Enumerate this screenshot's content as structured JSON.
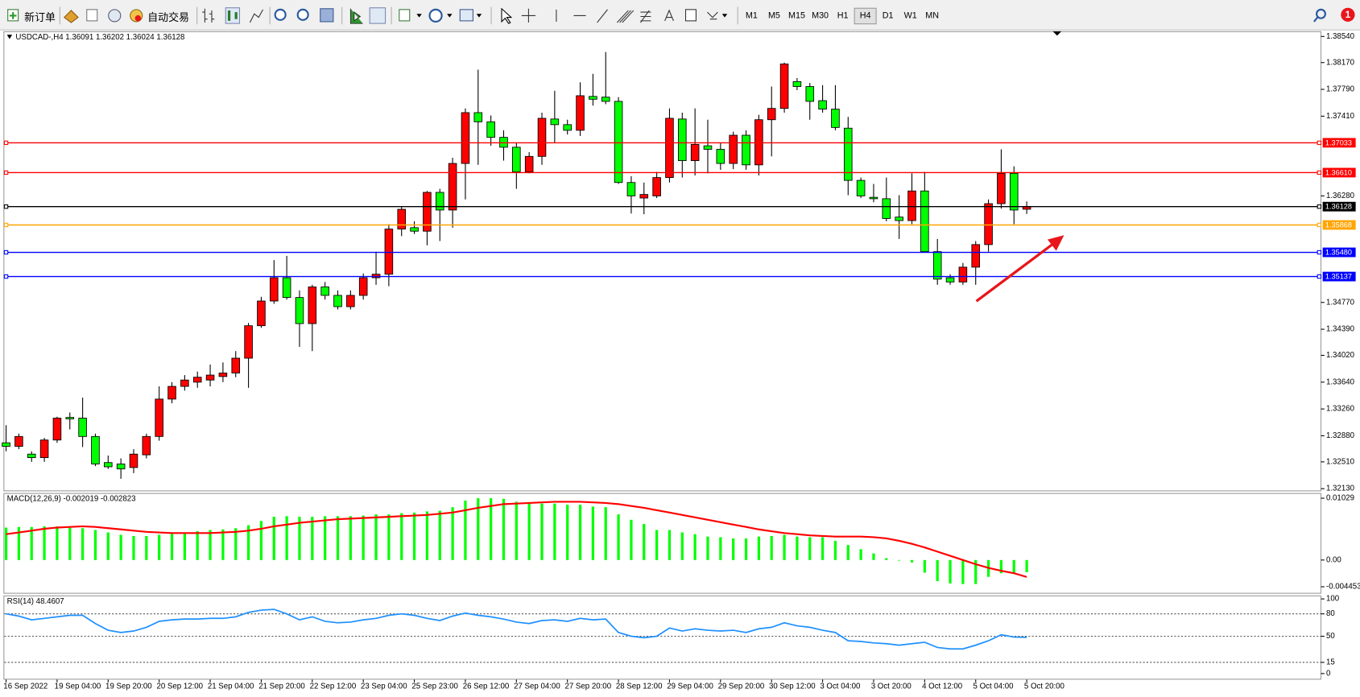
{
  "toolbar": {
    "new_order": "新订单",
    "auto_trading": "自动交易",
    "timeframes": [
      "M1",
      "M5",
      "M15",
      "M30",
      "H1",
      "H4",
      "D1",
      "W1",
      "MN"
    ],
    "notifications": "1"
  },
  "chart_data": [
    {
      "type": "candlestick",
      "title": "USDCAD-,H4  1.36091 1.36202 1.36024 1.36128",
      "categories": [
        "16 Sep 2022",
        null,
        null,
        null,
        "19 Sep 04:00",
        null,
        null,
        null,
        "19 Sep 20:00",
        null,
        null,
        null,
        "20 Sep 12:00",
        null,
        null,
        null,
        "21 Sep 04:00",
        null,
        null,
        null,
        "21 Sep 20:00",
        null,
        null,
        null,
        "22 Sep 12:00",
        null,
        null,
        null,
        "23 Sep 04:00",
        null,
        null,
        null,
        "25 Sep 23:00",
        null,
        null,
        null,
        "26 Sep 12:00",
        null,
        null,
        null,
        "27 Sep 04:00",
        null,
        null,
        null,
        "27 Sep 20:00",
        null,
        null,
        null,
        "28 Sep 12:00",
        null,
        null,
        null,
        "29 Sep 04:00",
        null,
        null,
        null,
        "29 Sep 20:00",
        null,
        null,
        null,
        "30 Sep 12:00",
        null,
        null,
        null,
        "3 Oct 04:00",
        null,
        null,
        null,
        "3 Oct 20:00",
        null,
        null,
        null,
        "4 Oct 12:00",
        null,
        null,
        null,
        "5 Oct 04:00",
        null,
        null,
        null,
        "5 Oct 20:00"
      ],
      "open": [
        1.3278,
        1.3273,
        1.3262,
        1.3257,
        1.3282,
        1.3314,
        1.3313,
        1.3287,
        1.325,
        1.3248,
        1.3243,
        1.3261,
        1.3287,
        1.334,
        1.3358,
        1.3364,
        1.3367,
        1.3372,
        1.3377,
        1.3398,
        1.3444,
        1.3479,
        1.3512,
        1.3484,
        1.3447,
        1.3499,
        1.3487,
        1.3471,
        1.3487,
        1.3512,
        1.3517,
        1.3581,
        1.3583,
        1.3578,
        1.3633,
        1.3608,
        1.3674,
        1.3746,
        1.3733,
        1.3711,
        1.3697,
        1.3662,
        1.3684,
        1.3737,
        1.3729,
        1.3721,
        1.3769,
        1.3768,
        1.3762,
        1.3647,
        1.3625,
        1.3628,
        1.3654,
        1.3737,
        1.3678,
        1.3699,
        1.3694,
        1.3674,
        1.3714,
        1.3672,
        1.3736,
        1.3752,
        1.379,
        1.3783,
        1.3763,
        1.3751,
        1.3724,
        1.365,
        1.3626,
        1.3624,
        1.3598,
        1.3593,
        1.3635,
        1.3549,
        1.3512,
        1.3506,
        1.3527,
        1.3559,
        1.3617,
        1.366,
        1.36091
      ],
      "high": [
        1.3303,
        1.3291,
        1.3266,
        1.3285,
        1.3315,
        1.3321,
        1.3342,
        1.3291,
        1.326,
        1.3256,
        1.3269,
        1.3291,
        1.3358,
        1.3364,
        1.3374,
        1.3379,
        1.3389,
        1.3392,
        1.3408,
        1.3448,
        1.3485,
        1.3537,
        1.3543,
        1.3494,
        1.3502,
        1.3506,
        1.3494,
        1.3494,
        1.3518,
        1.3549,
        1.3588,
        1.3613,
        1.3592,
        1.3635,
        1.3638,
        1.3682,
        1.3752,
        1.3807,
        1.3742,
        1.3721,
        1.3703,
        1.369,
        1.3746,
        1.3777,
        1.3736,
        1.3789,
        1.3801,
        1.3832,
        1.3768,
        1.3656,
        1.3647,
        1.3662,
        1.3752,
        1.3746,
        1.3752,
        1.3736,
        1.3703,
        1.3719,
        1.3721,
        1.3743,
        1.3783,
        1.3817,
        1.3795,
        1.3788,
        1.3785,
        1.3785,
        1.374,
        1.3654,
        1.3645,
        1.3654,
        1.3629,
        1.366,
        1.3662,
        1.3567,
        1.3517,
        1.3533,
        1.3564,
        1.3623,
        1.3694,
        1.367,
        1.36202
      ],
      "low": [
        1.3266,
        1.3269,
        1.3251,
        1.3251,
        1.3278,
        1.3297,
        1.3272,
        1.3245,
        1.3241,
        1.3227,
        1.3235,
        1.3256,
        1.3281,
        1.3334,
        1.3352,
        1.3356,
        1.3358,
        1.3364,
        1.3371,
        1.3356,
        1.3441,
        1.3475,
        1.3481,
        1.3414,
        1.3408,
        1.3481,
        1.3467,
        1.3467,
        1.3481,
        1.3502,
        1.35,
        1.3571,
        1.3574,
        1.3558,
        1.3564,
        1.3583,
        1.3623,
        1.3672,
        1.3699,
        1.3678,
        1.3638,
        1.366,
        1.3672,
        1.3703,
        1.3715,
        1.3713,
        1.3756,
        1.3758,
        1.3645,
        1.3603,
        1.3602,
        1.3625,
        1.3647,
        1.3654,
        1.3657,
        1.366,
        1.3665,
        1.3666,
        1.3665,
        1.3657,
        1.3684,
        1.3746,
        1.3778,
        1.3736,
        1.3746,
        1.3721,
        1.3629,
        1.3625,
        1.3619,
        1.3592,
        1.3567,
        1.3588,
        1.3549,
        1.3502,
        1.3502,
        1.3502,
        1.3502,
        1.3549,
        1.361,
        1.3588,
        1.36024
      ],
      "close": [
        1.3273,
        1.3287,
        1.3257,
        1.3282,
        1.3313,
        1.3312,
        1.3287,
        1.3248,
        1.3244,
        1.3241,
        1.3262,
        1.3287,
        1.334,
        1.3358,
        1.3367,
        1.3371,
        1.3374,
        1.3377,
        1.3398,
        1.3444,
        1.3479,
        1.3512,
        1.3484,
        1.3447,
        1.3499,
        1.3487,
        1.3471,
        1.3487,
        1.3512,
        1.3517,
        1.3581,
        1.3609,
        1.3578,
        1.3633,
        1.3608,
        1.3674,
        1.3746,
        1.3733,
        1.3711,
        1.3697,
        1.3662,
        1.3684,
        1.3738,
        1.3729,
        1.3721,
        1.377,
        1.3765,
        1.3762,
        1.3647,
        1.3628,
        1.363,
        1.3654,
        1.3738,
        1.3678,
        1.3701,
        1.3694,
        1.3674,
        1.3714,
        1.3672,
        1.3736,
        1.3752,
        1.3815,
        1.3783,
        1.3762,
        1.3751,
        1.3725,
        1.365,
        1.3628,
        1.3624,
        1.3596,
        1.3593,
        1.3635,
        1.3549,
        1.351,
        1.3506,
        1.3527,
        1.3559,
        1.3617,
        1.366,
        1.3608,
        1.36128
      ],
      "up_color": "#ff0000",
      "down_color": "#00ff00",
      "ylim": [
        1.3213,
        1.3854
      ],
      "yticks": [
        {
          "value": 1.3854,
          "label": "1.38540"
        },
        {
          "value": 1.3817,
          "label": "1.38170"
        },
        {
          "value": 1.3779,
          "label": "1.37790"
        },
        {
          "value": 1.3741,
          "label": "1.37410"
        },
        {
          "value": 1.3628,
          "label": "1.36280"
        },
        {
          "value": 1.3477,
          "label": "1.34770"
        },
        {
          "value": 1.3439,
          "label": "1.34390"
        },
        {
          "value": 1.3402,
          "label": "1.34020"
        },
        {
          "value": 1.3364,
          "label": "1.33640"
        },
        {
          "value": 1.3326,
          "label": "1.33260"
        },
        {
          "value": 1.3288,
          "label": "1.32880"
        },
        {
          "value": 1.3251,
          "label": "1.32510"
        },
        {
          "value": 1.3213,
          "label": "1.32130"
        }
      ],
      "hlines": [
        {
          "value": 1.37033,
          "label": "1.37033",
          "color": "#ff0000"
        },
        {
          "value": 1.3661,
          "label": "1.36610",
          "color": "#ff0000"
        },
        {
          "value": 1.36128,
          "label": "1.36128",
          "color": "#000000"
        },
        {
          "value": 1.35868,
          "label": "1.35868",
          "color": "#ffa500"
        },
        {
          "value": 1.3548,
          "label": "1.35480",
          "color": "#0000ff"
        },
        {
          "value": 1.35137,
          "label": "1.35137",
          "color": "#0000ff"
        }
      ]
    },
    {
      "type": "macd",
      "title": "MACD(12,26,9) -0.002019 -0.002823",
      "series": [
        {
          "style": "bar",
          "color": "#00ff00",
          "values": [
            0.0054,
            0.0055,
            0.0055,
            0.0056,
            0.0056,
            0.0055,
            0.0053,
            0.005,
            0.0046,
            0.0042,
            0.004,
            0.004,
            0.0042,
            0.0044,
            0.0046,
            0.0048,
            0.005,
            0.0051,
            0.0053,
            0.0058,
            0.0065,
            0.0072,
            0.0073,
            0.0072,
            0.0072,
            0.0073,
            0.0073,
            0.0073,
            0.0074,
            0.0076,
            0.0076,
            0.0078,
            0.0079,
            0.0081,
            0.0082,
            0.0088,
            0.0099,
            0.0103,
            0.0103,
            0.0102,
            0.0097,
            0.0094,
            0.0094,
            0.0094,
            0.0092,
            0.0092,
            0.0089,
            0.0088,
            0.0076,
            0.0067,
            0.006,
            0.005,
            0.005,
            0.0046,
            0.0043,
            0.0039,
            0.0038,
            0.0036,
            0.0036,
            0.0039,
            0.004,
            0.0042,
            0.0039,
            0.0038,
            0.0038,
            0.0032,
            0.0025,
            0.0018,
            0.0011,
            0.0003,
            -0.0001,
            -0.0004,
            -0.0021,
            -0.0035,
            -0.0039,
            -0.004,
            -0.004,
            -0.0028,
            -0.0022,
            -0.0022,
            -0.002019
          ]
        },
        {
          "style": "line",
          "color": "#ff0000",
          "values": [
            0.0043,
            0.0046,
            0.0049,
            0.0052,
            0.0054,
            0.0055,
            0.0056,
            0.0055,
            0.0053,
            0.0051,
            0.0049,
            0.0047,
            0.0046,
            0.0045,
            0.0045,
            0.0045,
            0.0045,
            0.0046,
            0.0047,
            0.0049,
            0.0052,
            0.0056,
            0.0059,
            0.0062,
            0.0064,
            0.0066,
            0.0068,
            0.0069,
            0.007,
            0.0071,
            0.0072,
            0.0073,
            0.0074,
            0.0075,
            0.0077,
            0.0079,
            0.0083,
            0.0087,
            0.009,
            0.0093,
            0.0094,
            0.0095,
            0.0096,
            0.0097,
            0.0097,
            0.0097,
            0.0096,
            0.0095,
            0.0093,
            0.009,
            0.0087,
            0.0083,
            0.0079,
            0.0075,
            0.0071,
            0.0067,
            0.0063,
            0.0059,
            0.0055,
            0.0051,
            0.0048,
            0.0045,
            0.0043,
            0.0041,
            0.004,
            0.0039,
            0.0039,
            0.0039,
            0.0038,
            0.0036,
            0.0032,
            0.0027,
            0.0021,
            0.0014,
            0.0007,
            0.0,
            -0.0007,
            -0.0013,
            -0.0018,
            -0.0022,
            -0.002823
          ]
        }
      ],
      "ylim": [
        -0.004453,
        0.01029
      ],
      "yticks": [
        0.01029,
        {
          "value": 0,
          "label": "0.00"
        },
        -0.004453
      ]
    },
    {
      "type": "line",
      "title": "RSI(14) 48.4607",
      "series": [
        {
          "color": "#1e90ff",
          "values": [
            80,
            77,
            72,
            74,
            76,
            78,
            78,
            67,
            58,
            55,
            57,
            62,
            70,
            72,
            73,
            73,
            74,
            74,
            76,
            82,
            85,
            86,
            80,
            72,
            76,
            70,
            68,
            69,
            72,
            74,
            78,
            80,
            78,
            74,
            71,
            77,
            81,
            78,
            76,
            73,
            69,
            67,
            71,
            72,
            70,
            74,
            72,
            73,
            55,
            50,
            48,
            50,
            61,
            57,
            60,
            58,
            57,
            58,
            55,
            60,
            62,
            68,
            64,
            62,
            58,
            55,
            44,
            43,
            41,
            40,
            38,
            40,
            42,
            35,
            33,
            33,
            38,
            44,
            52,
            49,
            48.4607
          ]
        }
      ],
      "ylim": [
        0,
        100
      ],
      "yticks": [
        100,
        80,
        50,
        15,
        0
      ],
      "levels": [
        80,
        50,
        15
      ]
    }
  ]
}
